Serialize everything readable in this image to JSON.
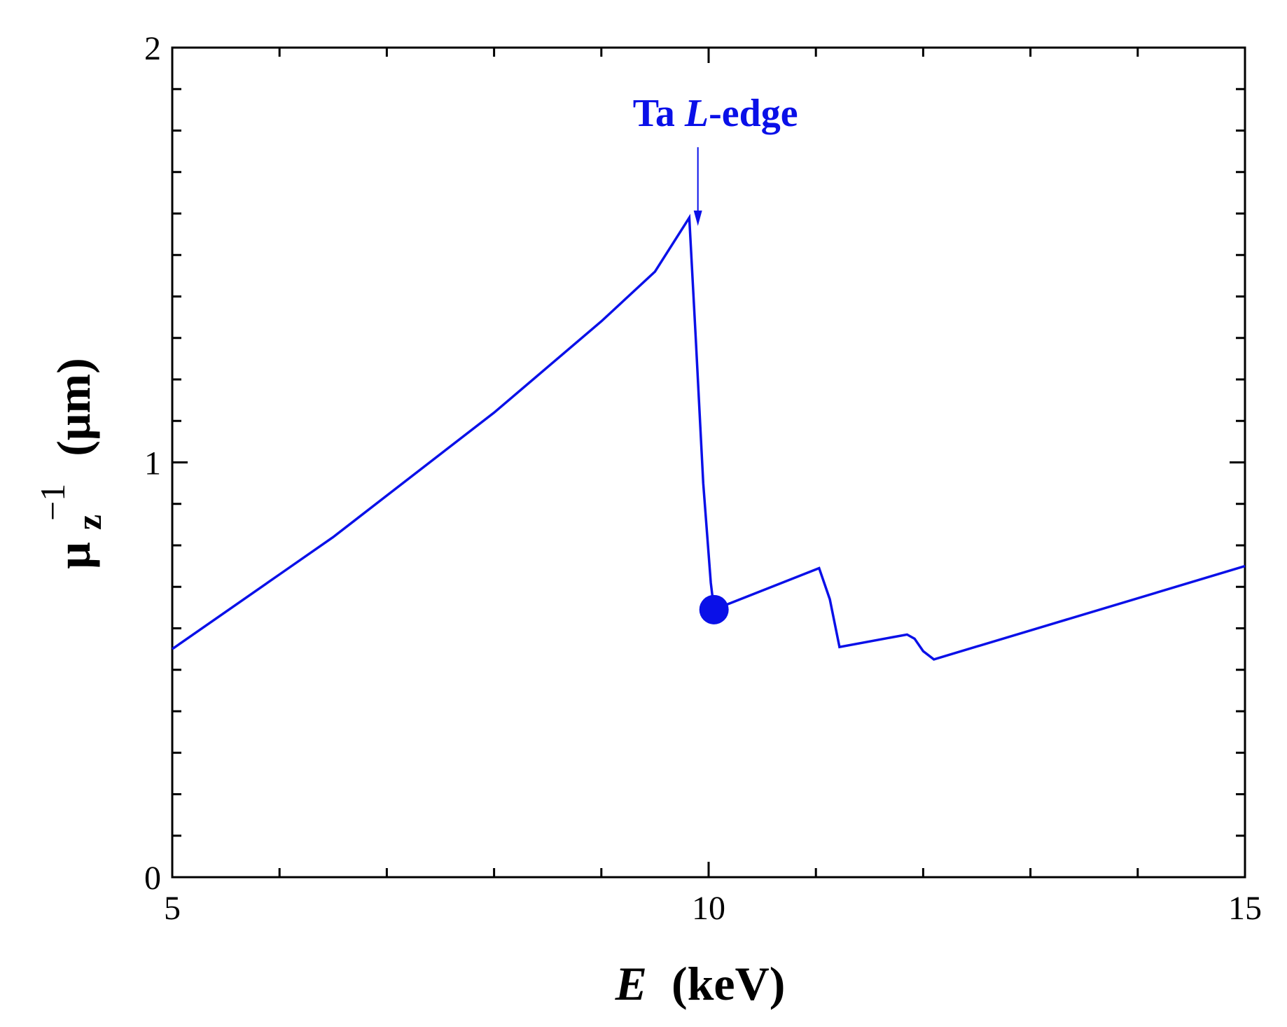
{
  "colors": {
    "series": "#0a10e8",
    "axis": "#000000",
    "background": "#ffffff"
  },
  "chart_data": {
    "type": "line",
    "title": "",
    "xlabel": {
      "var": "E",
      "unit": "(keV)"
    },
    "ylabel": {
      "var": "μ",
      "sub": "z",
      "sup": "−1",
      "unit": "(μm)"
    },
    "xlim": [
      5,
      15
    ],
    "ylim": [
      0,
      2
    ],
    "x_ticks": [
      5,
      10,
      15
    ],
    "y_ticks": [
      0,
      1,
      2
    ],
    "x_minor_step": 1,
    "y_minor_step": 0.1,
    "grid": false,
    "legend": "none",
    "series": [
      {
        "x": [
          5.0,
          5.5,
          6.0,
          6.5,
          7.0,
          7.5,
          8.0,
          8.5,
          9.0,
          9.5,
          9.82,
          9.88,
          9.95,
          10.02,
          10.05,
          11.03,
          11.13,
          11.22,
          11.85,
          11.92,
          12.0,
          12.1,
          15.0
        ],
        "y": [
          0.55,
          0.64,
          0.73,
          0.82,
          0.92,
          1.02,
          1.12,
          1.23,
          1.34,
          1.46,
          1.59,
          1.3,
          0.95,
          0.71,
          0.645,
          0.745,
          0.67,
          0.555,
          0.585,
          0.575,
          0.545,
          0.525,
          0.75
        ]
      }
    ],
    "markers": [
      {
        "x": 10.05,
        "y": 0.645
      }
    ],
    "annotations": [
      {
        "text_plain": "Ta ",
        "text_italic": "L",
        "text_rest": "-edge",
        "x": 9.9,
        "arrow_from_y": 1.76,
        "arrow_to_y": 1.57
      }
    ]
  }
}
